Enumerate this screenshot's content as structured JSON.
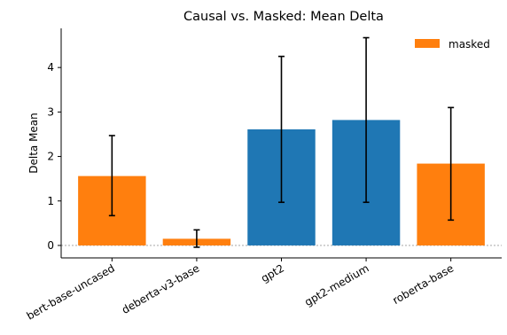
{
  "chart_data": {
    "type": "bar",
    "title": "Causal vs. Masked: Mean Delta",
    "xlabel": "",
    "ylabel": "Delta Mean",
    "ylim": [
      -0.28,
      4.88
    ],
    "yticks": [
      0,
      1,
      2,
      3,
      4
    ],
    "grid": false,
    "reference_line": 0,
    "legend": {
      "position": "top-right",
      "entries": [
        {
          "label": "masked",
          "color": "#ff7f0e"
        }
      ]
    },
    "categories": [
      "bert-base-uncased",
      "deberta-v3-base",
      "gpt2",
      "gpt2-medium",
      "roberta-base"
    ],
    "values": [
      1.56,
      0.15,
      2.61,
      2.82,
      1.84
    ],
    "error_low": [
      0.67,
      -0.04,
      0.97,
      0.97,
      0.57
    ],
    "error_high": [
      2.47,
      0.35,
      4.25,
      4.67,
      3.1
    ],
    "colors": [
      "#ff7f0e",
      "#ff7f0e",
      "#1f77b4",
      "#1f77b4",
      "#ff7f0e"
    ]
  }
}
